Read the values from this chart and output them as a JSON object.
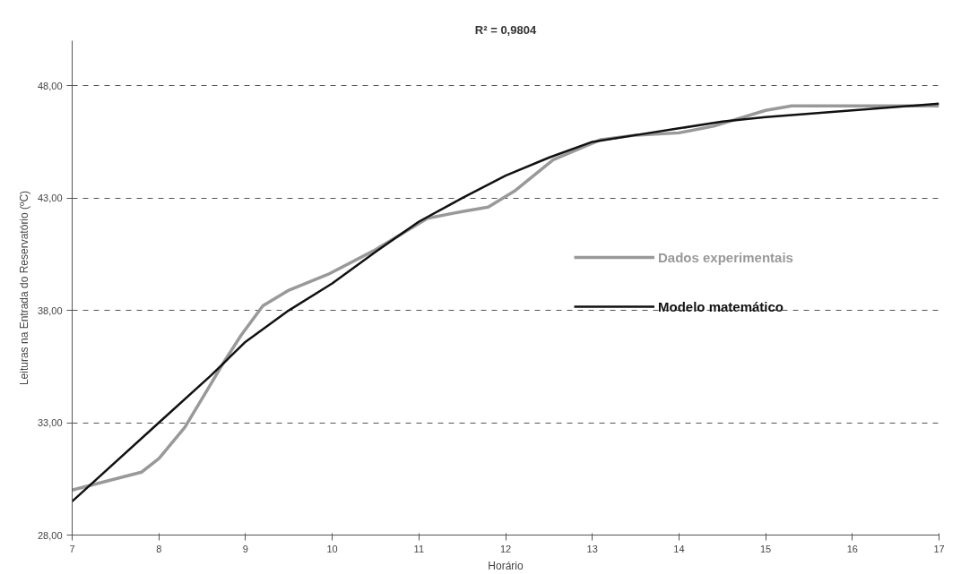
{
  "chart_data": {
    "type": "line",
    "xlabel": "Horário",
    "ylabel": "Leituras na Entrada do Reservatório (ºC)",
    "annotations": [
      "R² = 0,9804"
    ],
    "xlim": [
      7,
      17
    ],
    "xticks": [
      7,
      8,
      9,
      10,
      11,
      12,
      13,
      14,
      15,
      16,
      17
    ],
    "ylim": [
      28,
      50
    ],
    "yticks": [
      {
        "value": 28,
        "label": "28,00"
      },
      {
        "value": 33,
        "label": "33,00"
      },
      {
        "value": 38,
        "label": "38,00"
      },
      {
        "value": 43,
        "label": "43,00"
      },
      {
        "value": 48,
        "label": "48,00"
      }
    ],
    "grid": "y",
    "legend": "right",
    "line_style": "solid",
    "series": [
      {
        "name": "Dados experimentais",
        "color": "#999999",
        "x": [
          7.0,
          7.5,
          7.8,
          8.0,
          8.3,
          8.55,
          8.75,
          8.95,
          9.2,
          9.5,
          9.95,
          10.5,
          11.1,
          11.5,
          11.8,
          12.1,
          12.55,
          13.1,
          13.5,
          14.0,
          14.4,
          15.0,
          15.3,
          16.0,
          17.0
        ],
        "values": [
          30.0,
          30.5,
          30.8,
          31.4,
          32.8,
          34.4,
          35.7,
          36.9,
          38.2,
          38.9,
          39.6,
          40.7,
          42.1,
          42.4,
          42.6,
          43.3,
          44.7,
          45.6,
          45.8,
          45.9,
          46.2,
          46.9,
          47.1,
          47.1,
          47.1
        ]
      },
      {
        "name": "Modelo matemático",
        "color": "#111111",
        "x": [
          7.0,
          8.0,
          8.6,
          9.0,
          9.5,
          10.0,
          10.5,
          11.0,
          11.5,
          12.0,
          12.5,
          13.0,
          13.5,
          14.0,
          14.5,
          15.0,
          16.0,
          17.0
        ],
        "values": [
          29.5,
          33.0,
          35.1,
          36.6,
          38.0,
          39.2,
          40.6,
          41.95,
          43.0,
          44.0,
          44.8,
          45.5,
          45.8,
          46.1,
          46.4,
          46.6,
          46.9,
          47.2
        ]
      }
    ]
  }
}
